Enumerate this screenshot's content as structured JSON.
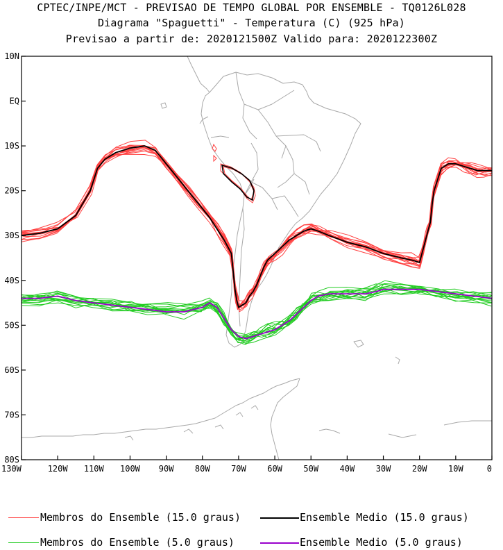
{
  "header": {
    "line1": "CPTEC/INPE/MCT - PREVISAO DE TEMPO GLOBAL POR ENSEMBLE - TQ0126L028",
    "line2": "Diagrama \"Spaguetti\" - Temperatura (C) (925 hPa)",
    "line3": "Previsao a partir de: 2020121500Z  Valido para: 2020122300Z"
  },
  "map": {
    "lon_range": [
      -130,
      0
    ],
    "lat_range": [
      -80,
      10
    ],
    "y_ticks": [
      "10N",
      "EQ",
      "10S",
      "20S",
      "30S",
      "40S",
      "50S",
      "60S",
      "70S",
      "80S"
    ],
    "x_ticks": [
      "130W",
      "120W",
      "110W",
      "100W",
      "90W",
      "80W",
      "70W",
      "60W",
      "50W",
      "40W",
      "30W",
      "20W",
      "10W",
      "0"
    ],
    "colors": {
      "coast": "#a8a8a8",
      "member15": "#ff4040",
      "mean15": "#000000",
      "member5": "#22cc22",
      "mean5": "#9900cc"
    }
  },
  "legend": {
    "members15": "Membros do Ensemble (15.0 graus)",
    "mean15": "Ensemble Medio (15.0 graus)",
    "members5": "Membros do Ensemble (5.0 graus)",
    "mean5": "Ensemble Medio (5.0 graus)"
  },
  "chart_data": {
    "type": "line",
    "x_axis": "longitude",
    "y_axis": "latitude",
    "series": [
      {
        "legend_key": "mean15",
        "lon": [
          -130,
          -125,
          -120,
          -115,
          -111,
          -109,
          -107,
          -104,
          -100,
          -96,
          -93,
          -90,
          -87,
          -84,
          -81,
          -78,
          -76,
          -74,
          -72,
          -71.5,
          -71,
          -70.5,
          -70,
          -69,
          -68,
          -67,
          -66,
          -65,
          -64,
          -63,
          -62,
          -60,
          -58,
          -56,
          -54,
          -52,
          -50,
          -48,
          -45,
          -40,
          -35,
          -30,
          -25,
          -22,
          -20,
          -19,
          -18,
          -17.5,
          -17,
          -16.5,
          -16,
          -14,
          -12,
          -10,
          -8,
          -6,
          -4,
          -2,
          0
        ],
        "lat": [
          -30,
          -29.5,
          -28.5,
          -25.5,
          -20,
          -15,
          -13,
          -11.5,
          -10.5,
          -10,
          -11,
          -14,
          -17,
          -20,
          -23,
          -26,
          -28.5,
          -31,
          -34,
          -38,
          -42,
          -44.5,
          -46,
          -45.5,
          -45,
          -43.5,
          -42.5,
          -41,
          -39,
          -37,
          -35.5,
          -34,
          -32.5,
          -31,
          -30,
          -29,
          -28.5,
          -29,
          -30,
          -31.5,
          -32.5,
          -34,
          -35,
          -35.5,
          -36,
          -33,
          -30,
          -28.5,
          -27,
          -23,
          -20,
          -15,
          -14,
          -14,
          -14.5,
          -15,
          -15.5,
          -15.5,
          -15.5
        ]
      },
      {
        "legend_key": "mean5",
        "lon": [
          -130,
          -125,
          -120,
          -115,
          -110,
          -105,
          -100,
          -95,
          -90,
          -85,
          -80,
          -78,
          -76,
          -74,
          -72,
          -70,
          -68,
          -66,
          -64,
          -62,
          -60,
          -58,
          -56,
          -54,
          -52,
          -50,
          -48,
          -45,
          -40,
          -35,
          -32,
          -30,
          -25,
          -20,
          -15,
          -10,
          -5,
          0
        ],
        "lat": [
          -44,
          -44,
          -43.5,
          -44.5,
          -45,
          -45.5,
          -46,
          -46.5,
          -47,
          -47,
          -46,
          -45,
          -46,
          -48.5,
          -51,
          -52.5,
          -53,
          -52.5,
          -52,
          -51.5,
          -51,
          -50,
          -49,
          -47.5,
          -46,
          -44.5,
          -43.5,
          -43,
          -43,
          -43,
          -42.5,
          -42,
          -42,
          -42,
          -42.5,
          -43,
          -43.5,
          -44
        ]
      }
    ]
  }
}
